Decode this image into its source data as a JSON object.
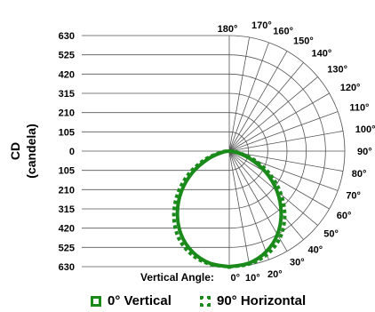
{
  "chart_data": {
    "type": "polar-photometric",
    "y_axis_label_line1": "CD",
    "y_axis_label_line2": "(candela)",
    "radial_ticks": [
      "630",
      "525",
      "420",
      "315",
      "210",
      "105",
      "0",
      "105",
      "210",
      "315",
      "420",
      "525",
      "630"
    ],
    "angle_labels": [
      "180°",
      "170°",
      "160°",
      "150°",
      "140°",
      "130°",
      "120°",
      "110°",
      "100°",
      "90°",
      "80°",
      "70°",
      "60°",
      "50°",
      "40°",
      "30°",
      "20°",
      "10°",
      "0°"
    ],
    "angle_label_values": [
      180,
      170,
      160,
      150,
      140,
      130,
      120,
      110,
      100,
      90,
      80,
      70,
      60,
      50,
      40,
      30,
      20,
      10,
      0
    ],
    "vertical_angle_label": "Vertical Angle:",
    "rlim": [
      0,
      630
    ],
    "series": [
      {
        "name": "0° Vertical",
        "style": "solid",
        "color": "#1a8a1a",
        "angles": [
          0,
          10,
          20,
          30,
          40,
          50,
          60,
          70,
          80,
          90
        ],
        "values": [
          630,
          620,
          585,
          525,
          440,
          340,
          230,
          120,
          40,
          0
        ]
      },
      {
        "name": "90° Horizontal",
        "style": "dotted",
        "color": "#1a8a1a",
        "angles": [
          0,
          10,
          20,
          30,
          40,
          50,
          60,
          70,
          80,
          90
        ],
        "values": [
          630,
          625,
          600,
          550,
          470,
          370,
          260,
          150,
          55,
          0
        ]
      }
    ],
    "legend": {
      "position": "bottom",
      "items": [
        "0° Vertical",
        "90° Horizontal"
      ]
    }
  }
}
